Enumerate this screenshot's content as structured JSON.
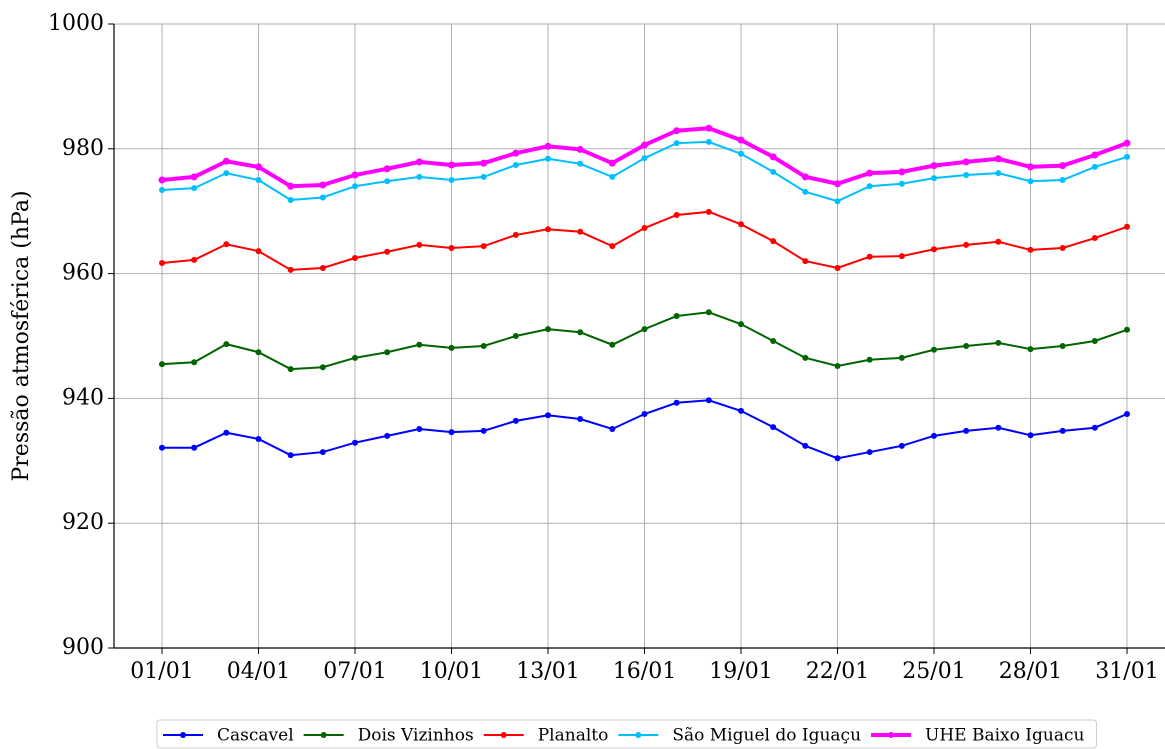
{
  "chart_data": {
    "type": "line",
    "ylabel": "Pressão atmosférica (hPa)",
    "categories": [
      "01/01",
      null,
      null,
      "04/01",
      null,
      null,
      "07/01",
      null,
      null,
      "10/01",
      null,
      null,
      "13/01",
      null,
      null,
      "16/01",
      null,
      null,
      "19/01",
      null,
      null,
      "22/01",
      null,
      null,
      "25/01",
      null,
      null,
      "28/01",
      null,
      null,
      "31/01"
    ],
    "ylim": [
      900,
      1000
    ],
    "yticks": [
      900,
      920,
      940,
      960,
      980,
      1000
    ],
    "grid": true,
    "legend": "bottom",
    "series": [
      {
        "name": "Cascavel",
        "color": "#0000ff",
        "linewidth": 2,
        "values": [
          932.1,
          932.1,
          934.5,
          933.5,
          930.9,
          931.4,
          932.9,
          934.0,
          935.1,
          934.6,
          934.8,
          936.4,
          937.3,
          936.7,
          935.1,
          937.5,
          939.3,
          939.7,
          938.0,
          935.4,
          932.4,
          930.4,
          931.4,
          932.4,
          934.0,
          934.8,
          935.3,
          934.1,
          934.8,
          935.3,
          937.5
        ]
      },
      {
        "name": "Dois Vizinhos",
        "color": "#006400",
        "linewidth": 2,
        "values": [
          945.5,
          945.8,
          948.7,
          947.4,
          944.7,
          945.0,
          946.5,
          947.4,
          948.6,
          948.1,
          948.4,
          950.0,
          951.1,
          950.6,
          948.6,
          951.1,
          953.2,
          953.8,
          951.9,
          949.2,
          946.5,
          945.2,
          946.2,
          946.5,
          947.8,
          948.4,
          948.9,
          947.9,
          948.4,
          949.2,
          951.0
        ]
      },
      {
        "name": "Planalto",
        "color": "#ff0000",
        "linewidth": 2,
        "values": [
          961.7,
          962.2,
          964.7,
          963.6,
          960.6,
          960.9,
          962.5,
          963.5,
          964.6,
          964.1,
          964.4,
          966.2,
          967.1,
          966.7,
          964.4,
          967.3,
          969.4,
          969.9,
          967.9,
          965.2,
          962.0,
          960.9,
          962.7,
          962.8,
          963.9,
          964.6,
          965.1,
          963.8,
          964.1,
          965.7,
          967.5
        ]
      },
      {
        "name": "São Miguel do Iguaçu",
        "color": "#00bfff",
        "linewidth": 2,
        "values": [
          973.4,
          973.7,
          976.1,
          975.0,
          971.8,
          972.2,
          974.0,
          974.8,
          975.5,
          975.0,
          975.5,
          977.4,
          978.4,
          977.6,
          975.5,
          978.5,
          980.9,
          981.1,
          979.2,
          976.3,
          973.1,
          971.6,
          974.0,
          974.4,
          975.3,
          975.8,
          976.1,
          974.8,
          975.0,
          977.1,
          978.7
        ]
      },
      {
        "name": "UHE Baixo Iguacu",
        "color": "#ff00ff",
        "linewidth": 4,
        "values": [
          975.0,
          975.5,
          978.0,
          977.1,
          974.0,
          974.2,
          975.8,
          976.8,
          977.9,
          977.4,
          977.7,
          979.3,
          980.4,
          979.9,
          977.7,
          980.6,
          982.9,
          983.3,
          981.4,
          978.7,
          975.5,
          974.4,
          976.1,
          976.3,
          977.3,
          977.9,
          978.4,
          977.1,
          977.3,
          979.0,
          980.9
        ]
      }
    ]
  }
}
